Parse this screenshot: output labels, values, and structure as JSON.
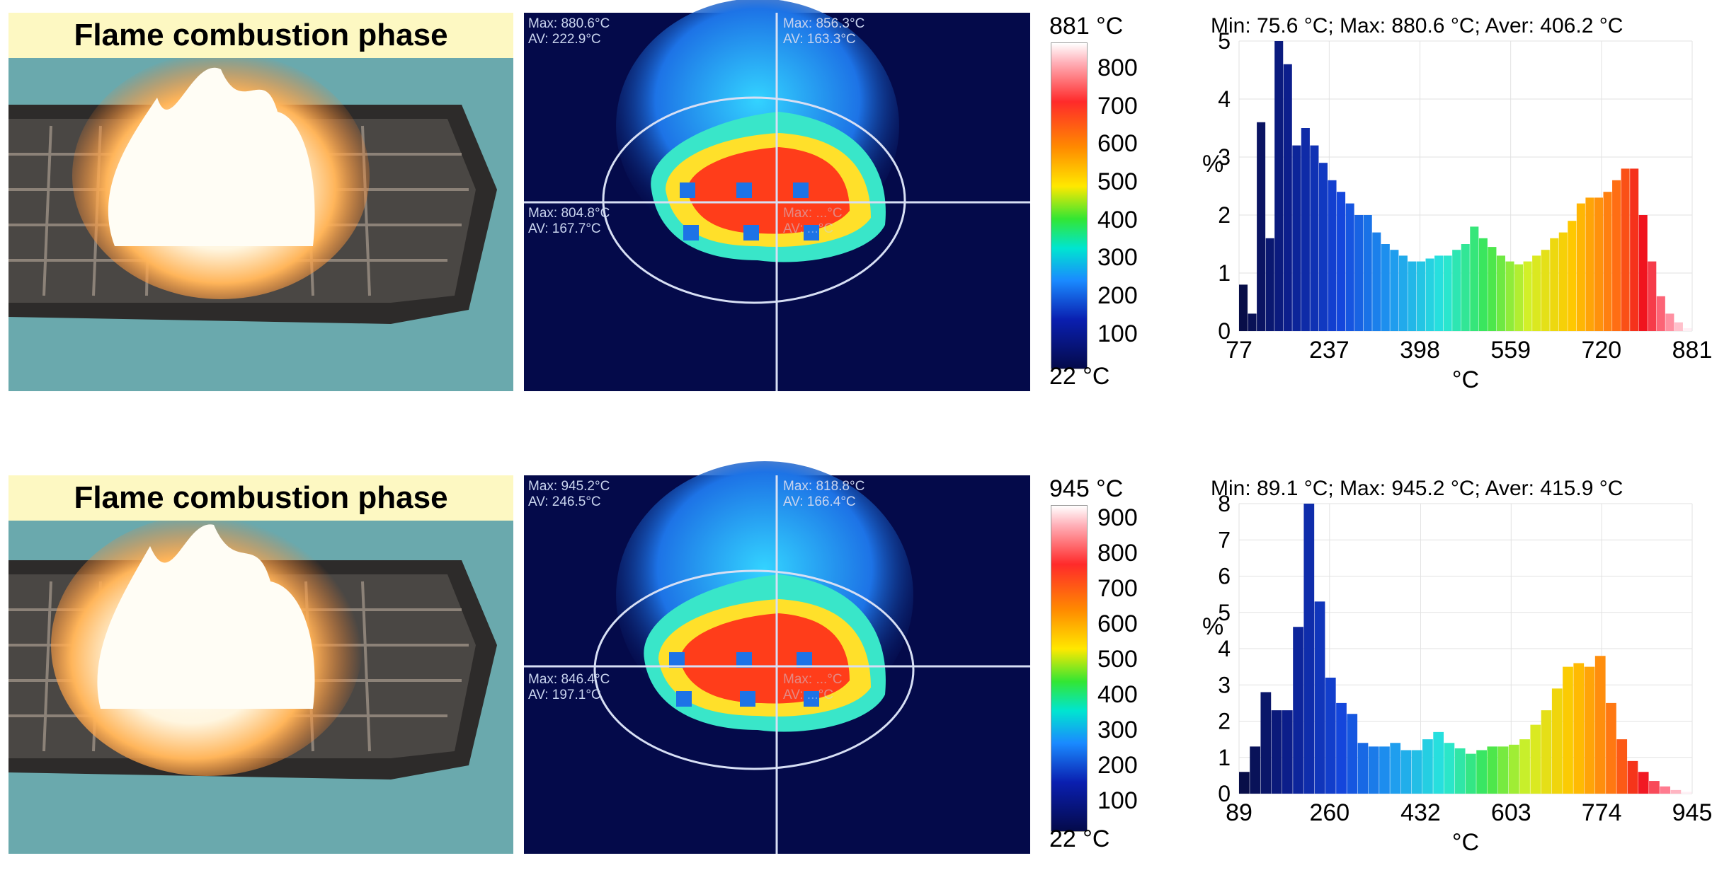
{
  "panels": [
    {
      "photo_title": "Flame combustion phase",
      "thermal_labels": [
        {
          "max": "Max: 880.6°C",
          "av": "AV: 222.9°C"
        },
        {
          "max": "Max: 856.3°C",
          "av": "AV: 163.3°C"
        },
        {
          "max": "Max: 804.8°C",
          "av": "AV: 167.7°C"
        },
        {
          "max": "Max: ...°C",
          "av": "AV: ...°C"
        }
      ],
      "scale_max": "881 °C",
      "scale_min": "22 °C",
      "colorbar_ticks": [
        "800",
        "700",
        "600",
        "500",
        "400",
        "300",
        "200",
        "100"
      ],
      "summary": "Min: 75.6 °C; Max: 880.6 °C; Aver: 406.2 °C"
    },
    {
      "photo_title": "Flame combustion phase",
      "thermal_labels": [
        {
          "max": "Max: 945.2°C",
          "av": "AV: 246.5°C"
        },
        {
          "max": "Max: 818.8°C",
          "av": "AV: 166.4°C"
        },
        {
          "max": "Max: 846.4°C",
          "av": "AV: 197.1°C"
        },
        {
          "max": "Max: ...°C",
          "av": "AV: ...°C"
        }
      ],
      "scale_max": "945 °C",
      "scale_min": "22 °C",
      "colorbar_ticks": [
        "900",
        "800",
        "700",
        "600",
        "500",
        "400",
        "300",
        "200",
        "100"
      ],
      "summary": "Min: 89.1 °C; Max: 945.2 °C; Aver: 415.9 °C"
    }
  ],
  "chart_data": [
    {
      "type": "bar",
      "title": "Min: 75.6 °C; Max: 880.6 °C; Aver: 406.2 °C",
      "xlabel": "°C",
      "ylabel": "%",
      "xlim": [
        77,
        881
      ],
      "ylim": [
        0,
        5
      ],
      "x_ticks": [
        77,
        237,
        398,
        559,
        720,
        881
      ],
      "y_ticks": [
        0,
        1,
        2,
        3,
        4,
        5
      ],
      "bin_start": 77,
      "bin_end": 881,
      "values": [
        0.8,
        0.3,
        3.6,
        1.6,
        5.0,
        4.6,
        3.2,
        3.5,
        3.2,
        2.9,
        2.6,
        2.4,
        2.2,
        2.0,
        2.0,
        1.7,
        1.5,
        1.4,
        1.3,
        1.2,
        1.2,
        1.25,
        1.3,
        1.3,
        1.4,
        1.5,
        1.8,
        1.6,
        1.45,
        1.3,
        1.2,
        1.15,
        1.2,
        1.3,
        1.4,
        1.6,
        1.7,
        1.9,
        2.2,
        2.3,
        2.3,
        2.4,
        2.6,
        2.8,
        2.8,
        2.0,
        1.2,
        0.6,
        0.3,
        0.15,
        0.05
      ]
    },
    {
      "type": "bar",
      "title": "Min: 89.1 °C; Max: 945.2 °C; Aver: 415.9 °C",
      "xlabel": "°C",
      "ylabel": "%",
      "xlim": [
        89,
        945
      ],
      "ylim": [
        0,
        8
      ],
      "x_ticks": [
        89,
        260,
        432,
        603,
        774,
        945
      ],
      "y_ticks": [
        0,
        1,
        2,
        3,
        4,
        5,
        6,
        7,
        8
      ],
      "bin_start": 89,
      "bin_end": 945,
      "values": [
        0.6,
        1.3,
        2.8,
        2.3,
        2.3,
        4.6,
        8.0,
        5.3,
        3.2,
        2.5,
        2.2,
        1.4,
        1.3,
        1.3,
        1.4,
        1.2,
        1.2,
        1.5,
        1.7,
        1.4,
        1.25,
        1.1,
        1.2,
        1.3,
        1.3,
        1.35,
        1.5,
        1.9,
        2.3,
        2.9,
        3.5,
        3.6,
        3.5,
        3.8,
        2.5,
        1.5,
        0.9,
        0.6,
        0.35,
        0.2,
        0.1,
        0.05
      ]
    }
  ]
}
